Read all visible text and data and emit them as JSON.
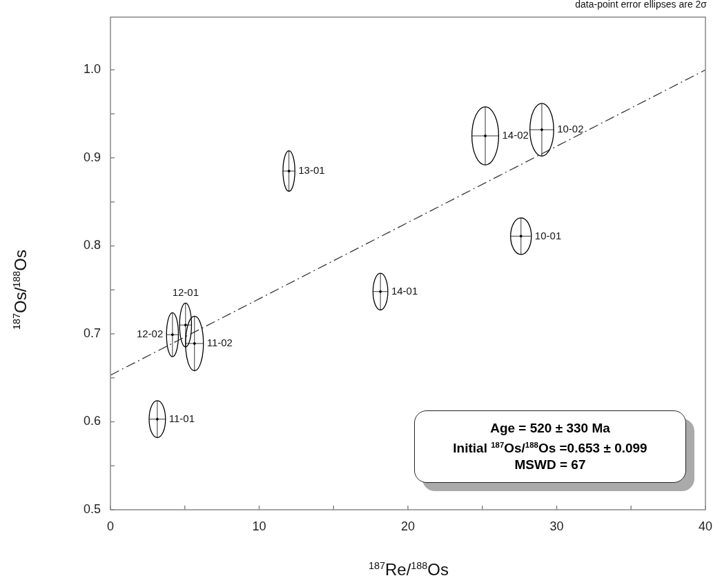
{
  "chart_data": {
    "type": "scatter",
    "xlabel": "$^{187}$Re/$^{188}$Os",
    "ylabel": "$^{187}$Os/$^{188}$Os",
    "xlim": [
      0,
      40
    ],
    "xticks": [
      0,
      {
        "value": 5,
        "label": null
      },
      10,
      {
        "value": 15,
        "label": null
      },
      20,
      {
        "value": 25,
        "label": null
      },
      30,
      {
        "value": 35,
        "label": null
      },
      40
    ],
    "ylim": [
      0.5,
      1.06
    ],
    "yticks": [
      0.5,
      {
        "value": 0.55,
        "label": null
      },
      0.6,
      {
        "value": 0.65,
        "label": null
      },
      0.7,
      {
        "value": 0.75,
        "label": null
      },
      0.8,
      {
        "value": 0.85,
        "label": null
      },
      0.9,
      {
        "value": 0.95,
        "label": null
      },
      "1.0"
    ],
    "grid": false,
    "legend": false,
    "series": [
      {
        "color": "#000000",
        "value_labels": [
          "11-01",
          "12-02",
          "12-01",
          "11-02",
          "13-01",
          "14-01",
          "10-01",
          "14-02",
          "10-02"
        ],
        "x": [
          3.15,
          4.17,
          5.05,
          5.65,
          12.0,
          18.15,
          27.6,
          25.2,
          29.0
        ],
        "values": [
          0.603,
          0.699,
          0.71,
          0.689,
          0.885,
          0.748,
          0.811,
          0.925,
          0.932
        ],
        "errors": [
          0.021,
          0.025,
          0.025,
          0.031,
          0.023,
          0.021,
          0.021,
          0.033,
          0.03
        ],
        "xerrors": [
          0.55,
          0.4,
          0.4,
          0.6,
          0.4,
          0.5,
          0.7,
          0.9,
          0.8
        ]
      },
      {
        "type": "line",
        "color": "#333333",
        "line_style": "dashed",
        "marker": "none",
        "x": [
          0,
          40
        ],
        "values": [
          0.653,
          1.0
        ]
      }
    ],
    "annotations": [
      "Age = 520 ± 330 Ma",
      "Initial $^{187}$Os/$^{188}$Os =0.653 ± 0.099",
      "MSWD = 67",
      "data-point error ellipses are 2σ"
    ]
  }
}
